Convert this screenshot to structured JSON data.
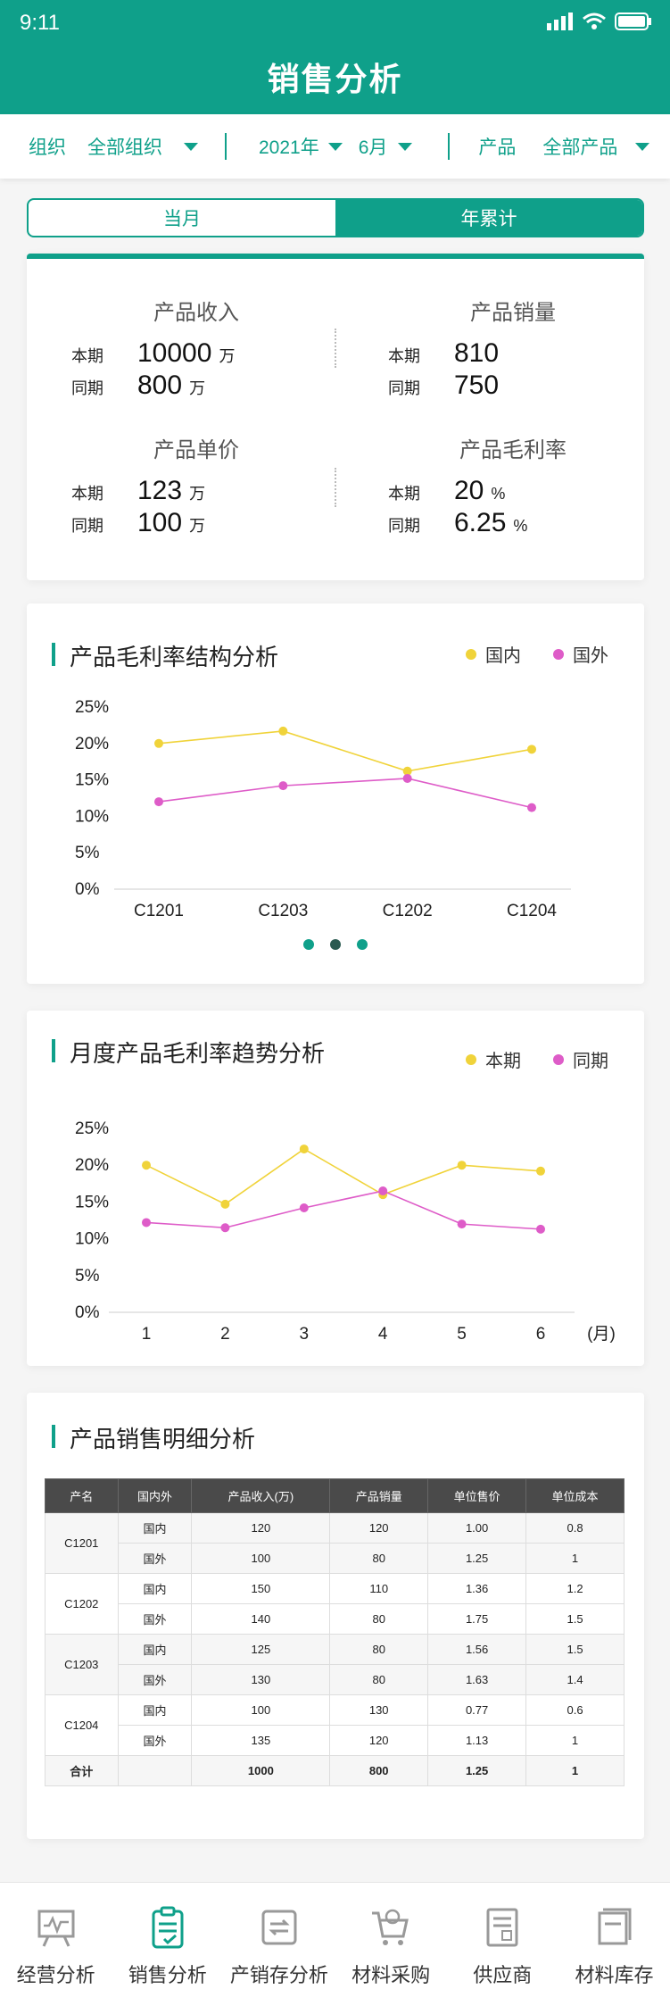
{
  "status": {
    "time": "9:11"
  },
  "header": {
    "title": "销售分析"
  },
  "filters": {
    "org_label": "组织",
    "org_value": "全部组织",
    "year_value": "2021年",
    "month_value": "6月",
    "product_label": "产品",
    "product_value": "全部产品"
  },
  "toggle": {
    "monthly": "当月",
    "ytd": "年累计",
    "selected": "年累计"
  },
  "kpis": [
    {
      "title": "产品收入",
      "current_label": "本期",
      "current": "10000",
      "current_unit": "万",
      "prior_label": "同期",
      "prior": "800",
      "prior_unit": "万"
    },
    {
      "title": "产品销量",
      "current_label": "本期",
      "current": "810",
      "current_unit": "",
      "prior_label": "同期",
      "prior": "750",
      "prior_unit": ""
    },
    {
      "title": "产品单价",
      "current_label": "本期",
      "current": "123",
      "current_unit": "万",
      "prior_label": "同期",
      "prior": "100",
      "prior_unit": "万"
    },
    {
      "title": "产品毛利率",
      "current_label": "本期",
      "current": "20",
      "current_unit": "%",
      "prior_label": "同期",
      "prior": "6.25",
      "prior_unit": "%"
    }
  ],
  "chart_data": [
    {
      "type": "line",
      "title": "产品毛利率结构分析",
      "categories": [
        "C1201",
        "C1203",
        "C1202",
        "C1204"
      ],
      "y_ticks": [
        "0%",
        "5%",
        "10%",
        "15%",
        "20%",
        "25%"
      ],
      "ylim": [
        0,
        25
      ],
      "series": [
        {
          "name": "国内",
          "color": "#f0d33a",
          "values": [
            20,
            21.7,
            16.2,
            19.2
          ]
        },
        {
          "name": "国外",
          "color": "#de5cc8",
          "values": [
            12,
            14.2,
            15.2,
            11.2
          ]
        }
      ],
      "legend": "top-right",
      "pager": {
        "count": 3,
        "active": 1
      }
    },
    {
      "type": "line",
      "title": "月度产品毛利率趋势分析",
      "categories": [
        "1",
        "2",
        "3",
        "4",
        "5",
        "6"
      ],
      "x_unit": "(月)",
      "y_ticks": [
        "0%",
        "5%",
        "10%",
        "15%",
        "20%",
        "25%"
      ],
      "ylim": [
        0,
        25
      ],
      "series": [
        {
          "name": "本期",
          "color": "#f0d33a",
          "values": [
            20,
            14.7,
            22.2,
            16,
            20,
            19.2
          ]
        },
        {
          "name": "同期",
          "color": "#de5cc8",
          "values": [
            12.2,
            11.5,
            14.2,
            16.5,
            12,
            11.3
          ]
        }
      ],
      "legend": "top-right"
    }
  ],
  "detail": {
    "title": "产品销售明细分析",
    "columns": [
      "产名",
      "国内外",
      "产品收入(万)",
      "产品销量",
      "单位售价",
      "单位成本"
    ],
    "groups": [
      {
        "name": "C1201",
        "rows": [
          [
            "国内",
            "120",
            "120",
            "1.00",
            "0.8"
          ],
          [
            "国外",
            "100",
            "80",
            "1.25",
            "1"
          ]
        ]
      },
      {
        "name": "C1202",
        "rows": [
          [
            "国内",
            "150",
            "110",
            "1.36",
            "1.2"
          ],
          [
            "国外",
            "140",
            "80",
            "1.75",
            "1.5"
          ]
        ]
      },
      {
        "name": "C1203",
        "rows": [
          [
            "国内",
            "125",
            "80",
            "1.56",
            "1.5"
          ],
          [
            "国外",
            "130",
            "80",
            "1.63",
            "1.4"
          ]
        ]
      },
      {
        "name": "C1204",
        "rows": [
          [
            "国内",
            "100",
            "130",
            "0.77",
            "0.6"
          ],
          [
            "国外",
            "135",
            "120",
            "1.13",
            "1"
          ]
        ]
      }
    ],
    "total": [
      "合计",
      "",
      "1000",
      "800",
      "1.25",
      "1"
    ]
  },
  "tabs": [
    {
      "label": "经营分析",
      "icon": "chart-board-icon"
    },
    {
      "label": "销售分析",
      "icon": "clipboard-check-icon",
      "active": true
    },
    {
      "label": "产销存分析",
      "icon": "cycle-icon"
    },
    {
      "label": "材料采购",
      "icon": "cart-icon"
    },
    {
      "label": "供应商",
      "icon": "document-icon"
    },
    {
      "label": "材料库存",
      "icon": "book-stack-icon"
    }
  ],
  "colors": {
    "brand": "#0fa08a",
    "series_a": "#f0d33a",
    "series_b": "#de5cc8"
  }
}
